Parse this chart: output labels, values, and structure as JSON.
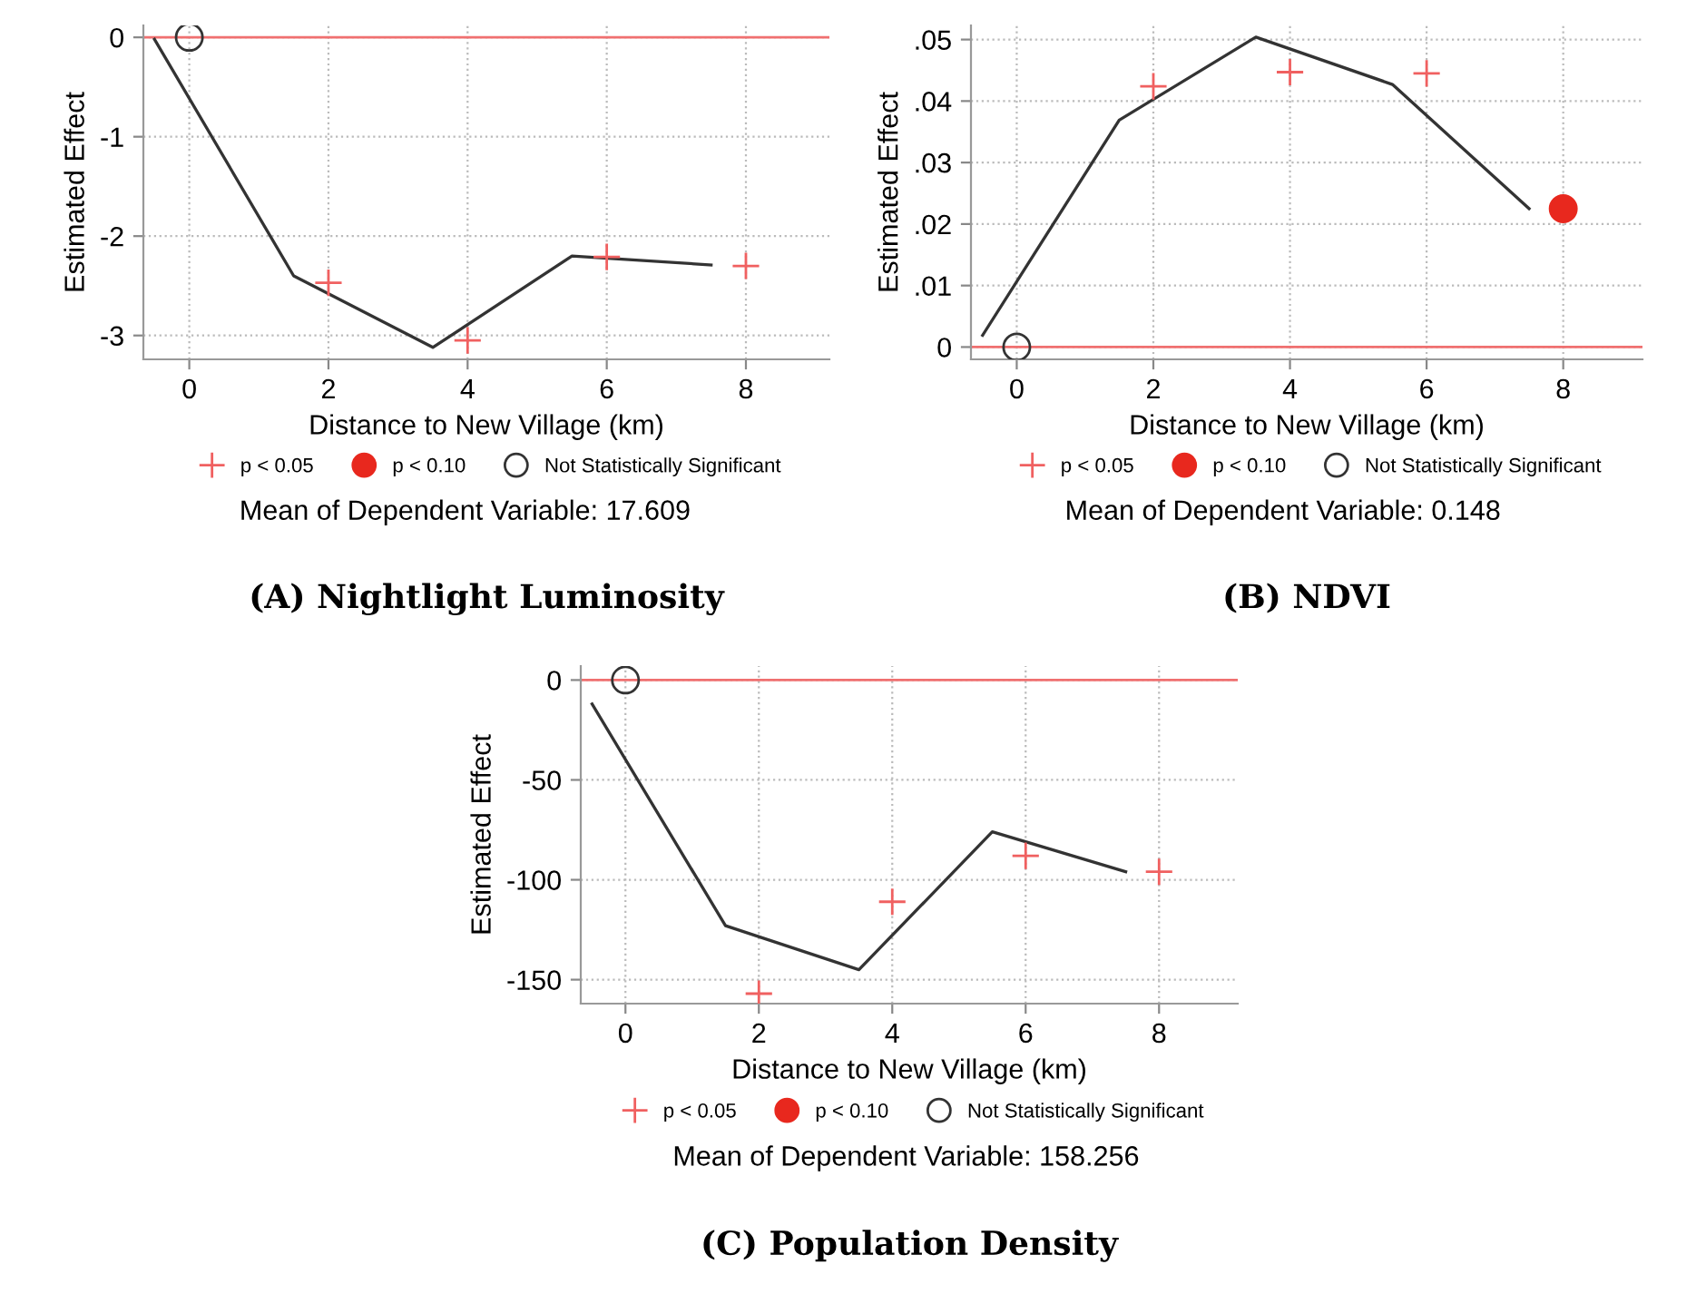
{
  "chart_data": [
    {
      "type": "scatter",
      "title": "(A) Nightlight Luminosity",
      "xlabel": "Distance to New Village (km)",
      "ylabel": "Estimated Effect",
      "xlim": [
        -0.66,
        9.2
      ],
      "xticks": [
        0,
        2,
        4,
        6,
        8
      ],
      "ylim": [
        -3.24,
        0.12
      ],
      "yticks": [
        -3,
        -2,
        -1,
        0
      ],
      "grid": true,
      "legend": "bottom",
      "series": [
        {
          "name": "p < 0.05",
          "marker": "cross",
          "color": "#f06060",
          "x": [
            2,
            4,
            6,
            8
          ],
          "values": [
            -2.47,
            -3.05,
            -2.21,
            -2.3
          ]
        },
        {
          "name": "p < 0.10",
          "marker": "circle",
          "color": "#e8281e"
        },
        {
          "name": "Not Statistically Significant",
          "marker": "circle",
          "color": "#333333",
          "x": [
            0
          ],
          "values": [
            0
          ]
        },
        {
          "type": "line",
          "marker": "none",
          "color": "#333333",
          "x": [
            -0.5,
            1.5,
            3.5,
            5.5,
            7.5
          ],
          "values": [
            -0.02,
            -2.4,
            -3.12,
            -2.2,
            -2.29
          ]
        }
      ],
      "ref_lines": [
        {
          "axis": "y",
          "value": 0,
          "color": "#f07070"
        }
      ],
      "annotations": [
        "Mean of Dependent Variable: 17.609"
      ]
    },
    {
      "type": "scatter",
      "title": "(B) NDVI",
      "xlabel": "Distance to New Village (km)",
      "ylabel": "Estimated Effect",
      "xlim": [
        -0.67,
        9.16
      ],
      "xticks": [
        0,
        2,
        4,
        6,
        8
      ],
      "ylim": [
        -0.002,
        0.0523
      ],
      "yticks": [
        0,
        {
          "value": 0.01,
          "label": ".01"
        },
        {
          "value": 0.02,
          "label": ".02"
        },
        {
          "value": 0.03,
          "label": ".03"
        },
        {
          "value": 0.04,
          "label": ".04"
        },
        {
          "value": 0.05,
          "label": ".05"
        }
      ],
      "grid": true,
      "legend": "bottom",
      "series": [
        {
          "name": "p < 0.05",
          "marker": "cross",
          "color": "#f06060",
          "x": [
            2,
            4,
            6
          ],
          "values": [
            0.0424,
            0.0447,
            0.0445
          ]
        },
        {
          "name": "p < 0.10",
          "marker": "circle",
          "color": "#e8281e",
          "x": [
            8
          ],
          "values": [
            0.0225
          ]
        },
        {
          "name": "Not Statistically Significant",
          "marker": "circle",
          "color": "#333333",
          "x": [
            0
          ],
          "values": [
            0
          ]
        },
        {
          "type": "line",
          "marker": "none",
          "color": "#333333",
          "x": [
            -0.5,
            1.5,
            3.5,
            5.5,
            7.5
          ],
          "values": [
            0.0019,
            0.0369,
            0.0504,
            0.0427,
            0.0225
          ]
        }
      ],
      "ref_lines": [
        {
          "axis": "y",
          "value": 0,
          "color": "#f07070"
        }
      ],
      "annotations": [
        "Mean of Dependent Variable: 0.148"
      ]
    },
    {
      "type": "scatter",
      "title": "(C) Population Density",
      "xlabel": "Distance to New Village (km)",
      "ylabel": "Estimated Effect",
      "xlim": [
        -0.67,
        9.18
      ],
      "xticks": [
        0,
        2,
        4,
        6,
        8
      ],
      "ylim": [
        -162,
        7
      ],
      "yticks": [
        -150,
        -100,
        -50,
        0
      ],
      "grid": true,
      "legend": "bottom",
      "series": [
        {
          "name": "p < 0.05",
          "marker": "cross",
          "color": "#f06060",
          "x": [
            2,
            4,
            6,
            8
          ],
          "values": [
            -157,
            -111,
            -88,
            -96
          ]
        },
        {
          "name": "p < 0.10",
          "marker": "circle",
          "color": "#e8281e"
        },
        {
          "name": "Not Statistically Significant",
          "marker": "circle",
          "color": "#333333",
          "x": [
            0
          ],
          "values": [
            0
          ]
        },
        {
          "type": "line",
          "marker": "none",
          "color": "#333333",
          "x": [
            -0.5,
            1.5,
            3.5,
            5.5,
            7.5
          ],
          "values": [
            -12,
            -123,
            -145,
            -76,
            -96
          ]
        }
      ],
      "ref_lines": [
        {
          "axis": "y",
          "value": 0,
          "color": "#f07070"
        }
      ],
      "annotations": [
        "Mean of Dependent Variable: 158.256"
      ]
    }
  ]
}
